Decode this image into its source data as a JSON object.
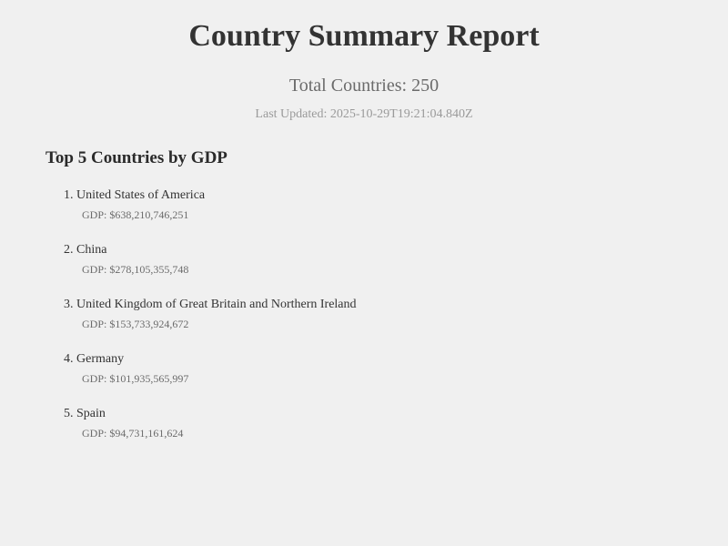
{
  "report": {
    "title": "Country Summary Report",
    "total_countries": "Total Countries: 250",
    "last_updated": "Last Updated: 2025-10-29T19:21:04.840Z"
  },
  "top_gdp": {
    "heading": "Top 5 Countries by GDP",
    "items": [
      {
        "name": "1. United States of America",
        "gdp": "GDP: $638,210,746,251"
      },
      {
        "name": "2. China",
        "gdp": "GDP: $278,105,355,748"
      },
      {
        "name": "3. United Kingdom of Great Britain and Northern Ireland",
        "gdp": "GDP: $153,733,924,672"
      },
      {
        "name": "4. Germany",
        "gdp": "GDP: $101,935,565,997"
      },
      {
        "name": "5. Spain",
        "gdp": "GDP: $94,731,161,624"
      }
    ]
  }
}
